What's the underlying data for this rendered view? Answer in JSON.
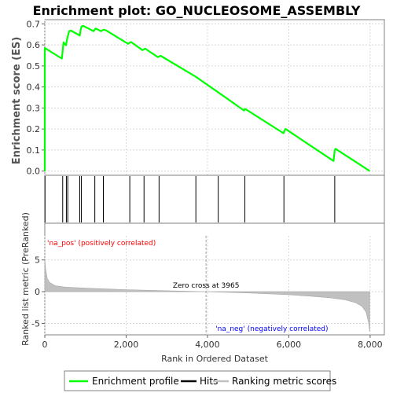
{
  "chart_data": {
    "type": "line",
    "title": "Enrichment plot: GO_NUCLEOSOME_ASSEMBLY",
    "es_panel": {
      "ylabel": "Enrichment score (ES)",
      "ylim": [
        -0.02,
        0.72
      ],
      "yticks": [
        "0.0",
        "0.1",
        "0.2",
        "0.3",
        "0.4",
        "0.5",
        "0.6",
        "0.7"
      ],
      "ytick_values": [
        0,
        0.1,
        0.2,
        0.3,
        0.4,
        0.5,
        0.6,
        0.7
      ],
      "series": [
        {
          "name": "Enrichment profile",
          "color": "#00ff00",
          "x": [
            0,
            0,
            420,
            440,
            460,
            520,
            545,
            565,
            600,
            640,
            860,
            880,
            905,
            950,
            1200,
            1225,
            1250,
            1380,
            1420,
            1450,
            1500,
            2050,
            2085,
            2120,
            2400,
            2440,
            2470,
            2500,
            2780,
            2820,
            2850,
            3700,
            4260,
            4900,
            4920,
            4950,
            5870,
            5890,
            5920,
            7100,
            7130,
            7150,
            7990
          ],
          "y": [
            0,
            0.585,
            0.535,
            0.575,
            0.612,
            0.598,
            0.625,
            0.64,
            0.665,
            0.668,
            0.645,
            0.67,
            0.688,
            0.69,
            0.665,
            0.672,
            0.678,
            0.665,
            0.67,
            0.672,
            0.67,
            0.605,
            0.61,
            0.614,
            0.575,
            0.579,
            0.582,
            0.578,
            0.542,
            0.546,
            0.548,
            0.45,
            0.375,
            0.288,
            0.295,
            0.293,
            0.18,
            0.19,
            0.2,
            0.048,
            0.1,
            0.106,
            0
          ]
        }
      ]
    },
    "hits": [
      5,
      440,
      530,
      565,
      860,
      900,
      1230,
      1440,
      2090,
      2440,
      2810,
      3715,
      4265,
      4920,
      5880,
      7130
    ],
    "hits_label": "Hits",
    "color_bar": {
      "segments": [
        {
          "from": 0,
          "to": 1300,
          "color": "#ee3a4c"
        },
        {
          "from": 1300,
          "to": 2100,
          "color": "#f26472"
        },
        {
          "from": 2100,
          "to": 3000,
          "color": "#f58b95"
        },
        {
          "from": 3000,
          "to": 3965,
          "color": "#fbc3da"
        },
        {
          "from": 3965,
          "to": 4900,
          "color": "#e3e3fb"
        },
        {
          "from": 4900,
          "to": 5900,
          "color": "#c9c9f6"
        },
        {
          "from": 5900,
          "to": 6450,
          "color": "#8a8af0"
        },
        {
          "from": 6450,
          "to": 7650,
          "color": "#5656e6"
        },
        {
          "from": 7650,
          "to": 7990,
          "color": "#1c00cc"
        }
      ]
    },
    "metric_panel": {
      "ylabel": "Ranked list metric (PreRanked)",
      "ylim": [
        -6.8,
        8.8
      ],
      "yticks": [
        "-5",
        "0",
        "5"
      ],
      "ytick_values": [
        -5,
        0,
        5
      ],
      "fill_color": "#c0c0c0",
      "zero_cross": 3965,
      "zero_cross_label": "Zero cross at 3965",
      "pos_label": "'na_pos' (positively correlated)",
      "neg_label": "'na_neg' (negatively correlated)",
      "pos_color": "#ff0000",
      "neg_color": "#0000ff",
      "profile_x": [
        0,
        20,
        60,
        120,
        250,
        500,
        1000,
        2000,
        3000,
        3965,
        5000,
        6000,
        6500,
        7000,
        7400,
        7650,
        7800,
        7900,
        7960,
        7990
      ],
      "profile_y": [
        5.2,
        3.6,
        2.1,
        1.45,
        0.95,
        0.72,
        0.55,
        0.32,
        0.14,
        0,
        -0.2,
        -0.48,
        -0.7,
        -0.95,
        -1.3,
        -1.75,
        -2.3,
        -3.2,
        -4.8,
        -6.3
      ]
    },
    "xaxis": {
      "label": "Rank in Ordered Dataset",
      "xlim": [
        0,
        8350
      ],
      "xticks": [
        "0",
        "2,000",
        "4,000",
        "6,000",
        "8,000"
      ],
      "xtick_values": [
        0,
        2000,
        4000,
        6000,
        8000
      ]
    },
    "legend": {
      "placement": "bottom",
      "entries": [
        {
          "label": "Enrichment profile",
          "color": "#00ff00"
        },
        {
          "label": "Hits",
          "color": "#000000"
        },
        {
          "label": "Ranking metric scores",
          "color": "#c0c0c0"
        }
      ]
    }
  }
}
